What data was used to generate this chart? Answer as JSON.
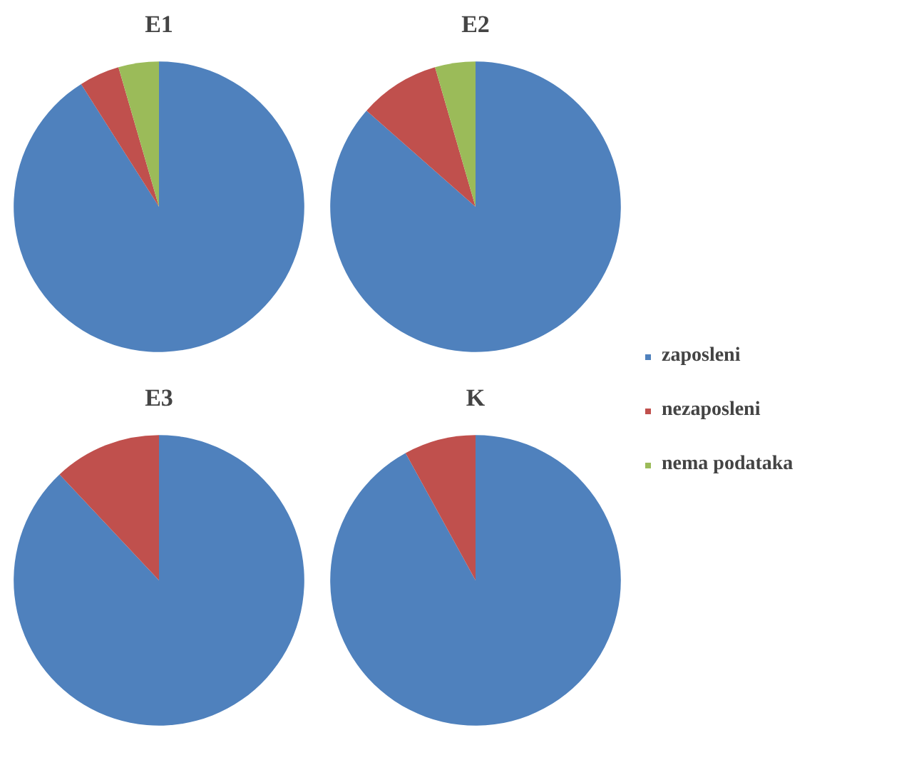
{
  "chart_data": [
    {
      "type": "pie",
      "title": "E1",
      "categories": [
        "zaposleni",
        "nezaposleni",
        "nema podataka"
      ],
      "values": [
        91,
        4.5,
        4.5
      ],
      "colors": [
        "#4f81bd",
        "#c0504d",
        "#9bbb59"
      ],
      "legend": "right"
    },
    {
      "type": "pie",
      "title": "E2",
      "categories": [
        null,
        null,
        null
      ],
      "values": [
        86.5,
        9,
        4.5
      ],
      "colors": [
        "#4f81bd",
        "#c0504d",
        "#9bbb59"
      ]
    },
    {
      "type": "pie",
      "title": "E3",
      "categories": [
        null,
        null
      ],
      "values": [
        88,
        12
      ],
      "colors": [
        "#4f81bd",
        "#c0504d"
      ]
    },
    {
      "type": "pie",
      "title": "K",
      "categories": [
        null,
        null
      ],
      "values": [
        92,
        8
      ],
      "colors": [
        "#4f81bd",
        "#c0504d"
      ]
    }
  ]
}
